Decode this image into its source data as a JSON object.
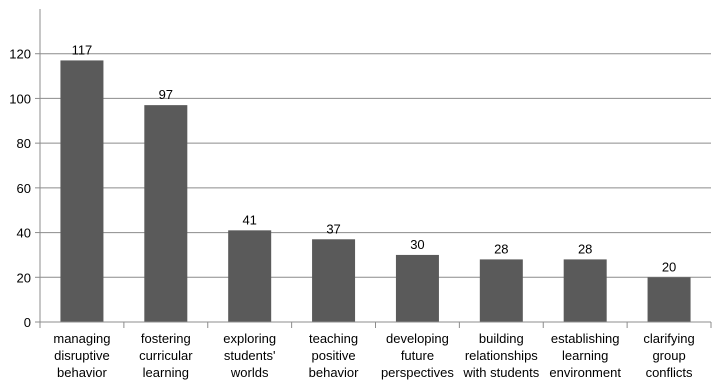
{
  "chart_data": {
    "type": "bar",
    "title": "",
    "xlabel": "",
    "ylabel": "",
    "ylim": [
      0,
      140
    ],
    "yticks": [
      0,
      20,
      40,
      60,
      80,
      100,
      120
    ],
    "grid": true,
    "bar_color": "#5a5a5a",
    "grid_color": "#8c8c8c",
    "categories": [
      [
        "managing",
        "disruptive",
        "behavior"
      ],
      [
        "fostering",
        "curricular",
        "learning"
      ],
      [
        "exploring",
        "students'",
        "worlds"
      ],
      [
        "teaching",
        "positive",
        "behavior"
      ],
      [
        "developing",
        "future",
        "perspectives"
      ],
      [
        "building",
        "relationships",
        "with students"
      ],
      [
        "establishing",
        "learning",
        "environment"
      ],
      [
        "clarifying",
        "group",
        "conflicts"
      ]
    ],
    "values": [
      117,
      97,
      41,
      37,
      30,
      28,
      28,
      20
    ]
  }
}
